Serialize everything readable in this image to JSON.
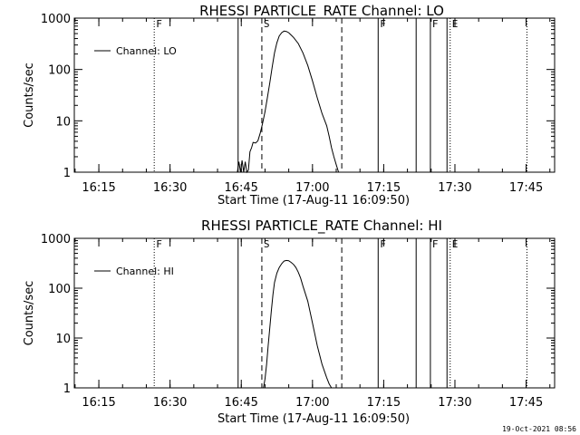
{
  "chart_data": [
    {
      "type": "line",
      "title": "RHESSI PARTICLE_RATE Channel: LO",
      "xlabel": "Start Time (17-Aug-11 16:09:50)",
      "ylabel": "Counts/sec",
      "yscale": "log",
      "xlim": [
        "16:09:50",
        "17:51:00"
      ],
      "ylim": [
        1,
        1000
      ],
      "x_ticks": [
        "16:15",
        "16:30",
        "16:45",
        "17:00",
        "17:15",
        "17:30",
        "17:45"
      ],
      "y_ticks": [
        "1",
        "10",
        "100",
        "1000"
      ],
      "legend": {
        "placement": "top-left",
        "entries": [
          "Channel: LO"
        ]
      },
      "series": [
        {
          "name": "Channel: LO",
          "x": [
            "16:44:10",
            "16:44:30",
            "16:44:50",
            "16:45:10",
            "16:45:30",
            "16:45:50",
            "16:46:10",
            "16:46:30",
            "16:46:50",
            "16:47:10",
            "16:47:30",
            "16:48:00",
            "16:48:30",
            "16:49:00",
            "16:49:30",
            "16:50:00",
            "16:50:30",
            "16:51:00",
            "16:51:30",
            "16:52:00",
            "16:52:30",
            "16:53:00",
            "16:53:30",
            "16:54:00",
            "16:54:30",
            "16:55:00",
            "16:55:30",
            "16:56:00",
            "16:57:00",
            "16:58:00",
            "16:59:00",
            "17:00:00",
            "17:01:00",
            "17:02:00",
            "17:03:00",
            "17:03:30",
            "17:04:00",
            "17:04:30",
            "17:05:00",
            "17:05:30"
          ],
          "y": [
            1.0,
            1.6,
            1.0,
            1.7,
            1.0,
            1.6,
            1.0,
            1.1,
            2.5,
            3.0,
            3.8,
            3.7,
            4.1,
            5.8,
            9,
            15,
            28,
            55,
            110,
            210,
            330,
            450,
            520,
            560,
            550,
            520,
            470,
            420,
            320,
            210,
            120,
            60,
            28,
            14,
            8,
            5,
            3,
            2,
            1.4,
            1.0
          ]
        }
      ],
      "markers": [
        {
          "time": "16:26:40",
          "style": "dotted",
          "label": "F"
        },
        {
          "time": "16:44:20",
          "style": "solid",
          "label": ""
        },
        {
          "time": "16:49:20",
          "style": "dashed",
          "label": "S"
        },
        {
          "time": "17:06:10",
          "style": "dashed",
          "label": ""
        },
        {
          "time": "17:13:50",
          "style": "solid",
          "label": "F"
        },
        {
          "time": "17:21:50",
          "style": "solid",
          "label": ""
        },
        {
          "time": "17:24:50",
          "style": "solid",
          "label": "F"
        },
        {
          "time": "17:28:20",
          "style": "solid",
          "label": ""
        },
        {
          "time": "17:29:00",
          "style": "dotted",
          "label": "E"
        },
        {
          "time": "17:45:10",
          "style": "dotted",
          "label": ""
        }
      ]
    },
    {
      "type": "line",
      "title": "RHESSI PARTICLE_RATE Channel: HI",
      "xlabel": "Start Time (17-Aug-11 16:09:50)",
      "ylabel": "Counts/sec",
      "yscale": "log",
      "xlim": [
        "16:09:50",
        "17:51:00"
      ],
      "ylim": [
        1,
        1000
      ],
      "x_ticks": [
        "16:15",
        "16:30",
        "16:45",
        "17:00",
        "17:15",
        "17:30",
        "17:45"
      ],
      "y_ticks": [
        "1",
        "10",
        "100",
        "1000"
      ],
      "legend": {
        "placement": "top-left",
        "entries": [
          "Channel: HI"
        ]
      },
      "series": [
        {
          "name": "Channel: HI",
          "x": [
            "16:49:40",
            "16:50:00",
            "16:50:20",
            "16:50:40",
            "16:51:00",
            "16:51:20",
            "16:51:40",
            "16:52:00",
            "16:52:30",
            "16:53:00",
            "16:53:30",
            "16:54:00",
            "16:54:30",
            "16:55:00",
            "16:55:30",
            "16:56:00",
            "16:56:30",
            "16:57:00",
            "16:57:30",
            "16:58:00",
            "16:59:00",
            "17:00:00",
            "17:01:00",
            "17:02:00",
            "17:03:00",
            "17:03:30",
            "17:04:00"
          ],
          "y": [
            1.0,
            1.5,
            3,
            7,
            16,
            35,
            75,
            130,
            200,
            260,
            310,
            350,
            360,
            355,
            330,
            300,
            260,
            210,
            160,
            110,
            55,
            20,
            7,
            3,
            1.6,
            1.2,
            1.0
          ]
        }
      ],
      "markers": [
        {
          "time": "16:26:40",
          "style": "dotted",
          "label": "F"
        },
        {
          "time": "16:44:20",
          "style": "solid",
          "label": ""
        },
        {
          "time": "16:49:20",
          "style": "dashed",
          "label": "S"
        },
        {
          "time": "17:06:10",
          "style": "dashed",
          "label": ""
        },
        {
          "time": "17:13:50",
          "style": "solid",
          "label": "F"
        },
        {
          "time": "17:21:50",
          "style": "solid",
          "label": ""
        },
        {
          "time": "17:24:50",
          "style": "solid",
          "label": "F"
        },
        {
          "time": "17:28:20",
          "style": "solid",
          "label": ""
        },
        {
          "time": "17:29:00",
          "style": "dotted",
          "label": "E"
        },
        {
          "time": "17:45:10",
          "style": "dotted",
          "label": ""
        }
      ]
    }
  ],
  "footer": {
    "timestamp": "19-Oct-2021 08:56"
  },
  "colors": {
    "background": "#ffffff",
    "foreground": "#000000"
  }
}
